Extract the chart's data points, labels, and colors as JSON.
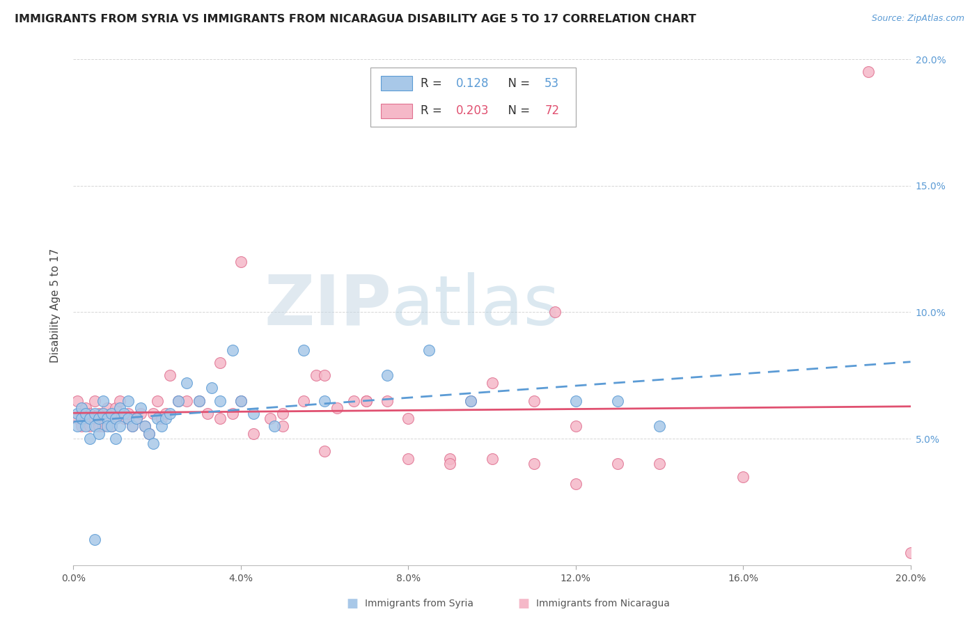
{
  "title": "IMMIGRANTS FROM SYRIA VS IMMIGRANTS FROM NICARAGUA DISABILITY AGE 5 TO 17 CORRELATION CHART",
  "source": "Source: ZipAtlas.com",
  "ylabel": "Disability Age 5 to 17",
  "xlim": [
    0.0,
    0.2
  ],
  "ylim": [
    0.0,
    0.205
  ],
  "x_ticks": [
    0.0,
    0.04,
    0.08,
    0.12,
    0.16,
    0.2
  ],
  "x_tick_labels": [
    "0.0%",
    "4.0%",
    "8.0%",
    "12.0%",
    "16.0%",
    "20.0%"
  ],
  "y_ticks": [
    0.0,
    0.05,
    0.1,
    0.15,
    0.2
  ],
  "y_tick_labels_right": [
    "",
    "5.0%",
    "10.0%",
    "15.0%",
    "20.0%"
  ],
  "syria_fill_color": "#a8c8e8",
  "syria_edge_color": "#5b9bd5",
  "nicaragua_fill_color": "#f5b8c8",
  "nicaragua_edge_color": "#e07090",
  "syria_line_color": "#5b9bd5",
  "nicaragua_line_color": "#e05070",
  "right_axis_color": "#5b9bd5",
  "syria_R": "0.128",
  "syria_N": "53",
  "nicaragua_R": "0.203",
  "nicaragua_N": "72",
  "legend_label_syria": "Immigrants from Syria",
  "legend_label_nicaragua": "Immigrants from Nicaragua",
  "syria_x": [
    0.001,
    0.001,
    0.002,
    0.002,
    0.003,
    0.003,
    0.004,
    0.004,
    0.005,
    0.005,
    0.006,
    0.006,
    0.007,
    0.007,
    0.008,
    0.008,
    0.009,
    0.009,
    0.01,
    0.01,
    0.011,
    0.011,
    0.012,
    0.013,
    0.013,
    0.014,
    0.015,
    0.016,
    0.017,
    0.018,
    0.019,
    0.02,
    0.021,
    0.022,
    0.023,
    0.025,
    0.027,
    0.03,
    0.033,
    0.035,
    0.038,
    0.04,
    0.043,
    0.048,
    0.055,
    0.06,
    0.075,
    0.085,
    0.095,
    0.12,
    0.13,
    0.14,
    0.005
  ],
  "syria_y": [
    0.06,
    0.055,
    0.058,
    0.062,
    0.055,
    0.06,
    0.058,
    0.05,
    0.06,
    0.055,
    0.058,
    0.052,
    0.065,
    0.06,
    0.058,
    0.055,
    0.06,
    0.055,
    0.058,
    0.05,
    0.062,
    0.055,
    0.06,
    0.065,
    0.058,
    0.055,
    0.058,
    0.062,
    0.055,
    0.052,
    0.048,
    0.058,
    0.055,
    0.058,
    0.06,
    0.065,
    0.072,
    0.065,
    0.07,
    0.065,
    0.085,
    0.065,
    0.06,
    0.055,
    0.085,
    0.065,
    0.075,
    0.085,
    0.065,
    0.065,
    0.065,
    0.055,
    0.01
  ],
  "nicaragua_x": [
    0.001,
    0.001,
    0.002,
    0.002,
    0.003,
    0.003,
    0.004,
    0.004,
    0.005,
    0.005,
    0.006,
    0.006,
    0.007,
    0.007,
    0.008,
    0.008,
    0.009,
    0.009,
    0.01,
    0.01,
    0.011,
    0.012,
    0.013,
    0.014,
    0.015,
    0.016,
    0.017,
    0.018,
    0.019,
    0.02,
    0.021,
    0.022,
    0.023,
    0.025,
    0.027,
    0.03,
    0.032,
    0.035,
    0.038,
    0.04,
    0.043,
    0.047,
    0.05,
    0.055,
    0.058,
    0.06,
    0.063,
    0.067,
    0.07,
    0.075,
    0.08,
    0.09,
    0.095,
    0.1,
    0.11,
    0.115,
    0.12,
    0.035,
    0.04,
    0.05,
    0.06,
    0.07,
    0.08,
    0.09,
    0.1,
    0.11,
    0.12,
    0.13,
    0.14,
    0.16,
    0.19,
    0.2
  ],
  "nicaragua_y": [
    0.065,
    0.058,
    0.06,
    0.055,
    0.062,
    0.058,
    0.06,
    0.055,
    0.065,
    0.058,
    0.06,
    0.055,
    0.06,
    0.055,
    0.062,
    0.058,
    0.055,
    0.06,
    0.062,
    0.058,
    0.065,
    0.058,
    0.06,
    0.055,
    0.058,
    0.06,
    0.055,
    0.052,
    0.06,
    0.065,
    0.058,
    0.06,
    0.075,
    0.065,
    0.065,
    0.065,
    0.06,
    0.058,
    0.06,
    0.065,
    0.052,
    0.058,
    0.06,
    0.065,
    0.075,
    0.075,
    0.062,
    0.065,
    0.065,
    0.065,
    0.058,
    0.042,
    0.065,
    0.072,
    0.065,
    0.1,
    0.055,
    0.08,
    0.12,
    0.055,
    0.045,
    0.065,
    0.042,
    0.04,
    0.042,
    0.04,
    0.032,
    0.04,
    0.04,
    0.035,
    0.195,
    0.005
  ],
  "watermark_zip_color": "#c5d8e8",
  "watermark_atlas_color": "#a0c0d8"
}
